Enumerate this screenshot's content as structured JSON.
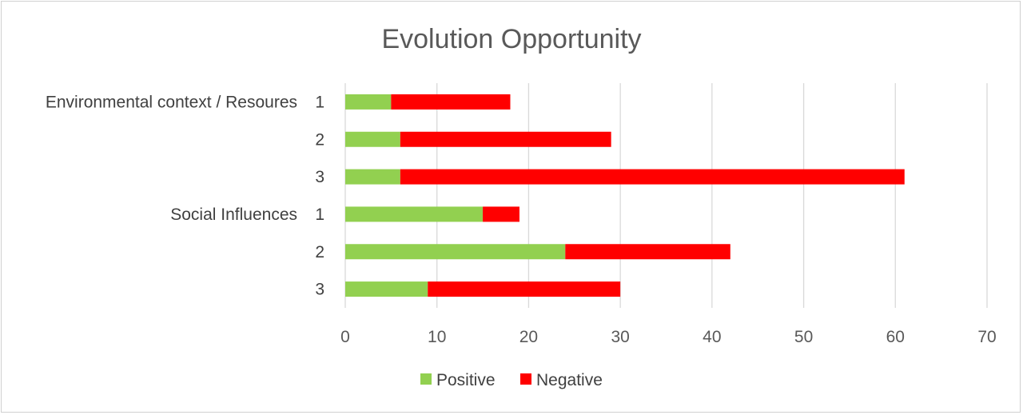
{
  "chart_data": {
    "type": "bar",
    "orientation": "horizontal",
    "stacked": true,
    "title": "Evolution Opportunity",
    "groups": [
      {
        "name": "Environmental context / Resoures",
        "categories": [
          "1",
          "2",
          "3"
        ]
      },
      {
        "name": "Social Influences",
        "categories": [
          "1",
          "2",
          "3"
        ]
      }
    ],
    "series": [
      {
        "name": "Positive",
        "color": "#92d050",
        "values": [
          5,
          6,
          6,
          15,
          24,
          9
        ]
      },
      {
        "name": "Negative",
        "color": "#ff0000",
        "values": [
          13,
          23,
          55,
          4,
          18,
          21
        ]
      }
    ],
    "xlim": [
      0,
      70
    ],
    "xticks": [
      0,
      10,
      20,
      30,
      40,
      50,
      60,
      70
    ],
    "grid": true,
    "legend": "bottom"
  }
}
